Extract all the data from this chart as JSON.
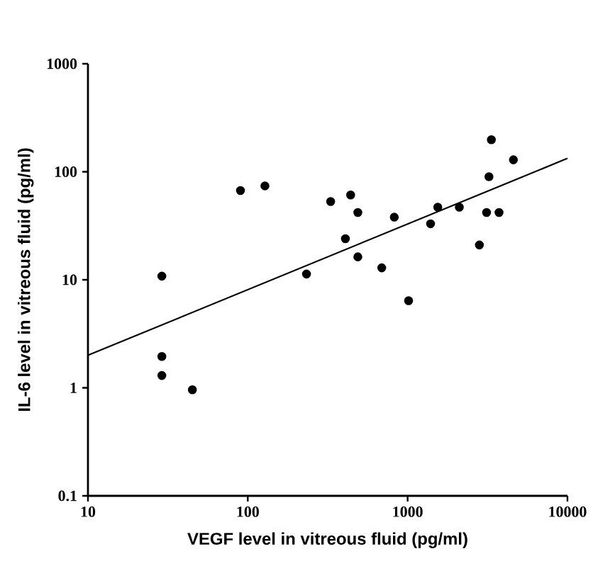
{
  "chart_data": {
    "type": "scatter",
    "xlabel": "VEGF level in vitreous fluid (pg/ml)",
    "ylabel": "IL-6 level in vitreous fluid (pg/ml)",
    "log": "xy",
    "xlim": [
      10,
      10000
    ],
    "ylim": [
      0.1,
      1000
    ],
    "xticks": [
      10,
      100,
      1000,
      10000
    ],
    "yticks": [
      0.1,
      1,
      10,
      100,
      1000
    ],
    "series": [
      {
        "marker": "circle",
        "color": "#000000",
        "x": [
          29,
          29,
          29,
          45,
          90,
          128,
          233,
          330,
          440,
          408,
          488,
          488,
          689,
          825,
          1014,
          1392,
          1544,
          2106,
          2812,
          3119,
          3228,
          3342,
          3732,
          4590
        ],
        "values": [
          10.8,
          1.95,
          1.3,
          0.96,
          67,
          74,
          11.3,
          53,
          61,
          24,
          42,
          16.3,
          12.9,
          38,
          6.4,
          33,
          47,
          47,
          21,
          42,
          90,
          198,
          42,
          129
        ]
      },
      {
        "type": "line",
        "marker": "none",
        "line_style": "solid",
        "color": "#000000",
        "x": [
          10,
          10000
        ],
        "values": [
          2.0,
          133
        ]
      }
    ]
  }
}
